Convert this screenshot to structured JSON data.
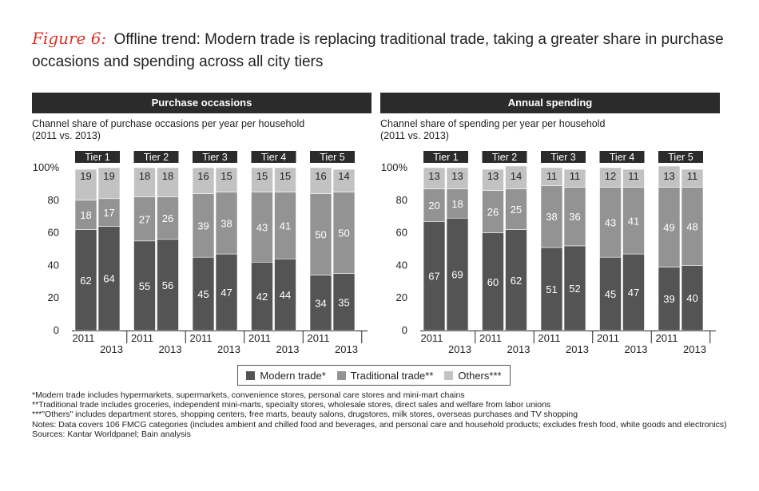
{
  "figure": {
    "label": "Figure 6:",
    "title": "Offline trend: Modern trade is replacing traditional trade, taking a greater share in purchase occasions and spending across all city tiers"
  },
  "colors": {
    "modern": "#545454",
    "traditional": "#939393",
    "others": "#c2c2c2",
    "header_bg": "#2b2b2b"
  },
  "chart_data": [
    {
      "type": "bar",
      "stacked": true,
      "title": "Purchase occasions",
      "subtitle_line1": "Channel share of purchase occasions per year per household",
      "subtitle_line2": "(2011 vs. 2013)",
      "y_ticks": [
        "0",
        "20",
        "40",
        "60",
        "80",
        "100%"
      ],
      "ylim": [
        0,
        100
      ],
      "groups": [
        "Tier 1",
        "Tier 2",
        "Tier 3",
        "Tier 4",
        "Tier 5"
      ],
      "years": [
        "2011",
        "2013"
      ],
      "series": [
        {
          "name": "Modern trade*",
          "values": [
            [
              62,
              64
            ],
            [
              55,
              56
            ],
            [
              45,
              47
            ],
            [
              42,
              44
            ],
            [
              34,
              35
            ]
          ]
        },
        {
          "name": "Traditional trade**",
          "values": [
            [
              18,
              17
            ],
            [
              27,
              26
            ],
            [
              39,
              38
            ],
            [
              43,
              41
            ],
            [
              50,
              50
            ]
          ]
        },
        {
          "name": "Others***",
          "values": [
            [
              19,
              19
            ],
            [
              18,
              18
            ],
            [
              16,
              15
            ],
            [
              15,
              15
            ],
            [
              16,
              14
            ]
          ]
        }
      ]
    },
    {
      "type": "bar",
      "stacked": true,
      "title": "Annual spending",
      "subtitle_line1": "Channel share of spending per year per household",
      "subtitle_line2": "(2011 vs. 2013)",
      "y_ticks": [
        "0",
        "20",
        "40",
        "60",
        "80",
        "100%"
      ],
      "ylim": [
        0,
        100
      ],
      "groups": [
        "Tier 1",
        "Tier 2",
        "Tier 3",
        "Tier 4",
        "Tier 5"
      ],
      "years": [
        "2011",
        "2013"
      ],
      "series": [
        {
          "name": "Modern trade*",
          "values": [
            [
              67,
              69
            ],
            [
              60,
              62
            ],
            [
              51,
              52
            ],
            [
              45,
              47
            ],
            [
              39,
              40
            ]
          ]
        },
        {
          "name": "Traditional trade**",
          "values": [
            [
              20,
              18
            ],
            [
              26,
              25
            ],
            [
              38,
              36
            ],
            [
              43,
              41
            ],
            [
              49,
              48
            ]
          ]
        },
        {
          "name": "Others***",
          "values": [
            [
              13,
              13
            ],
            [
              13,
              14
            ],
            [
              11,
              11
            ],
            [
              12,
              11
            ],
            [
              13,
              11
            ]
          ]
        }
      ]
    }
  ],
  "legend": {
    "modern": "Modern trade*",
    "traditional": "Traditional trade**",
    "others": "Others***"
  },
  "notes": [
    "*Modern trade includes hypermarkets, supermarkets, convenience stores, personal care stores and mini-mart chains",
    "**Traditional trade includes groceries, independent mini-marts, specialty stores, wholesale stores, direct sales and welfare from labor unions",
    "***\"Others\" includes department stores, shopping centers, free marts, beauty salons, drugstores, milk stores, overseas purchases and TV shopping",
    "Notes: Data covers 106 FMCG categories (includes ambient and chilled food and beverages, and personal care and household products; excludes fresh food, white goods and electronics)",
    "Sources: Kantar Worldpanel; Bain analysis"
  ]
}
